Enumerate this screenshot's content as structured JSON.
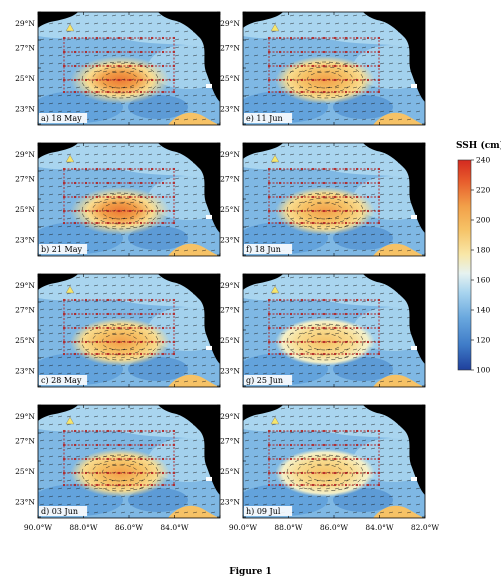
{
  "figure": {
    "caption": "Figure 1",
    "lat_labels": [
      "29°N",
      "27°N",
      "25°N",
      "23°N"
    ],
    "lon_labels": [
      "90.0°W",
      "88.0°W",
      "86.0°W",
      "84.0°W",
      "82.0°W"
    ],
    "lon_labels_inner": [
      "88.0°W",
      "86.0°W",
      "84.0°W"
    ],
    "panels": [
      {
        "label": "a) 18 May",
        "col": 0,
        "row": 0,
        "eddy": "strong"
      },
      {
        "label": "b) 21 May",
        "col": 0,
        "row": 1,
        "eddy": "strong"
      },
      {
        "label": "c) 28 May",
        "col": 0,
        "row": 2,
        "eddy": "medium"
      },
      {
        "label": "d) 03 Jun",
        "col": 0,
        "row": 3,
        "eddy": "medium"
      },
      {
        "label": "e) 11 Jun",
        "col": 1,
        "row": 0,
        "eddy": "medium"
      },
      {
        "label": "f) 18 Jun",
        "col": 1,
        "row": 1,
        "eddy": "medium"
      },
      {
        "label": "g) 25 Jun",
        "col": 1,
        "row": 2,
        "eddy": "weak"
      },
      {
        "label": "h) 09 Jul",
        "col": 1,
        "row": 3,
        "eddy": "weak"
      }
    ],
    "colorbar": {
      "title": "SSH (cm)",
      "ticks": [
        "240",
        "220",
        "200",
        "180",
        "160",
        "140",
        "120",
        "100"
      ],
      "colors": [
        "#1f3f9c",
        "#2f6cc0",
        "#4f93d6",
        "#79b6e3",
        "#a9d5ef",
        "#d6ecf4",
        "#f4f0c8",
        "#f8dc90",
        "#f6c266",
        "#f2a049",
        "#ec7a34",
        "#e34f2a",
        "#d42a20"
      ]
    },
    "colors": {
      "land": "#000000",
      "ocean_low": "#4f93d6",
      "ocean_mid": "#a9d5ef",
      "eddy_warm": "#f2a049",
      "survey_lines": "#b22222",
      "marker": "#f6e56a"
    }
  }
}
